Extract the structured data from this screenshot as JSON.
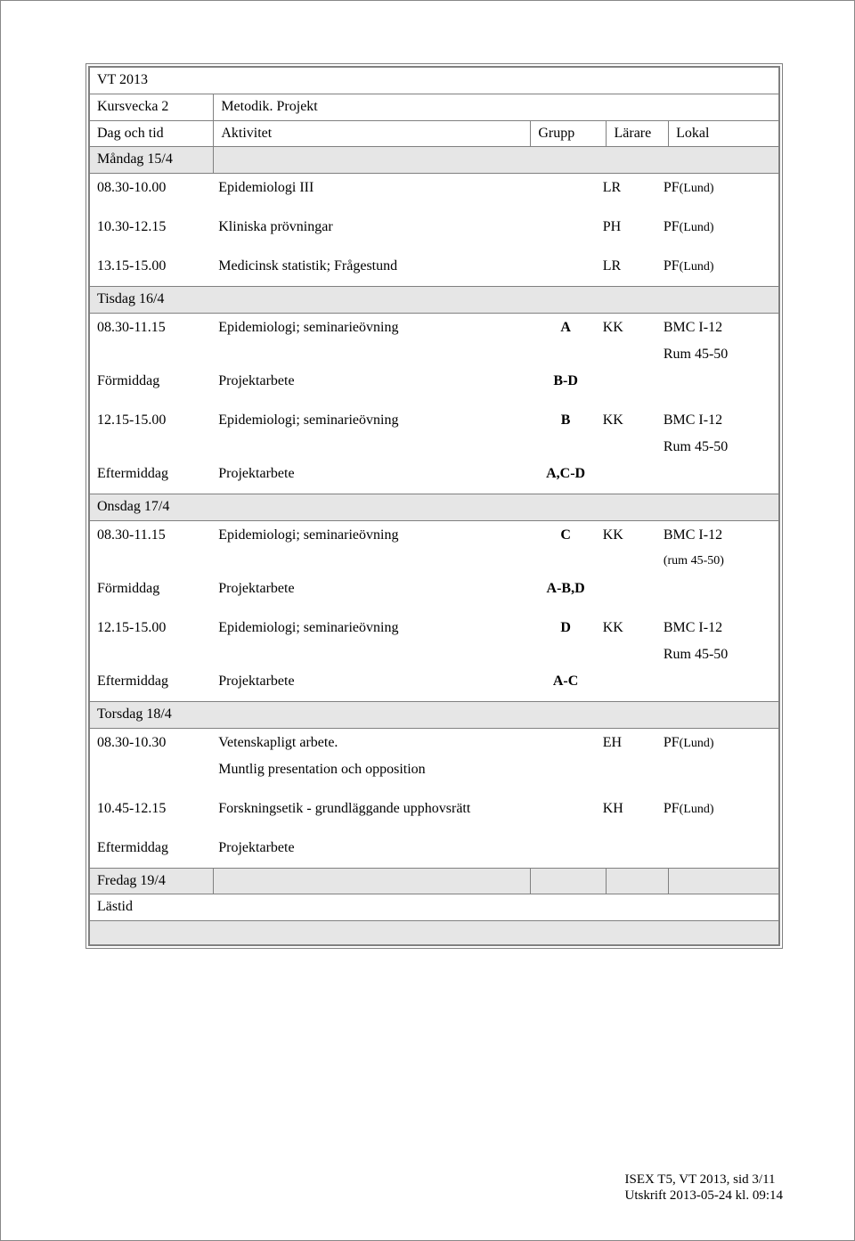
{
  "term": "VT 2013",
  "week_label": "Kursvecka 2",
  "week_topic": "Metodik. Projekt",
  "headers": {
    "day": "Dag och tid",
    "act": "Aktivitet",
    "grp": "Grupp",
    "lar": "Lärare",
    "lok": "Lokal"
  },
  "mon": {
    "day": "Måndag  15/4",
    "r1": {
      "t": "08.30-10.00",
      "a": "Epidemiologi III",
      "l": "LR",
      "k1": "PF",
      "k2": "(Lund)"
    },
    "r2": {
      "t": "10.30-12.15",
      "a": "Kliniska prövningar",
      "l": "PH",
      "k1": "PF",
      "k2": "(Lund)"
    },
    "r3": {
      "t": "13.15-15.00",
      "a": "Medicinsk statistik; Frågestund",
      "l": "LR",
      "k1": "PF",
      "k2": "(Lund)"
    }
  },
  "tue": {
    "day": "Tisdag  16/4",
    "r1": {
      "t": "08.30-11.15",
      "a": "Epidemiologi; seminarieövning",
      "g": "A",
      "l": "KK",
      "k": "BMC I-12"
    },
    "r1b": {
      "k": "Rum 45-50"
    },
    "r2": {
      "t": "Förmiddag",
      "a": "Projektarbete",
      "g": "B-D"
    },
    "r3": {
      "t": "12.15-15.00",
      "a": "Epidemiologi; seminarieövning",
      "g": "B",
      "l": "KK",
      "k": "BMC I-12"
    },
    "r3b": {
      "k": "Rum 45-50"
    },
    "r4": {
      "t": "Eftermiddag",
      "a": "Projektarbete",
      "g": "A,C-D"
    }
  },
  "wed": {
    "day": "Onsdag  17/4",
    "r1": {
      "t": "08.30-11.15",
      "a": "Epidemiologi; seminarieövning",
      "g": "C",
      "l": "KK",
      "k": "BMC I-12"
    },
    "r1b": {
      "k": "(rum 45-50)"
    },
    "r2": {
      "t": "Förmiddag",
      "a": "Projektarbete",
      "g": "A-B,D"
    },
    "r3": {
      "t": "12.15-15.00",
      "a": "Epidemiologi; seminarieövning",
      "g": "D",
      "l": "KK",
      "k": "BMC I-12"
    },
    "r3b": {
      "k": "Rum 45-50"
    },
    "r4": {
      "t": "Eftermiddag",
      "a": "Projektarbete",
      "g": "A-C"
    }
  },
  "thu": {
    "day": "Torsdag  18/4",
    "r1": {
      "t": " 08.30-10.30",
      "a1": "Vetenskapligt arbete.",
      "a2": "Muntlig presentation och opposition",
      "l": "EH",
      "k1": "PF",
      "k2": "(Lund)"
    },
    "r2": {
      "t": "10.45-12.15",
      "a": "Forskningsetik - grundläggande upphovsrätt",
      "l": "KH",
      "k1": "PF",
      "k2": "(Lund)"
    },
    "r3": {
      "t": "Eftermiddag",
      "a": "Projektarbete"
    }
  },
  "fri": {
    "day": "Fredag  19/4",
    "lastid": "Lästid"
  },
  "footer": {
    "l1": "ISEX T5, VT 2013, sid 3/11",
    "l2": "Utskrift 2013-05-24 kl. 09:14"
  },
  "colors": {
    "shade": "#e6e6e6",
    "border": "#808080"
  }
}
